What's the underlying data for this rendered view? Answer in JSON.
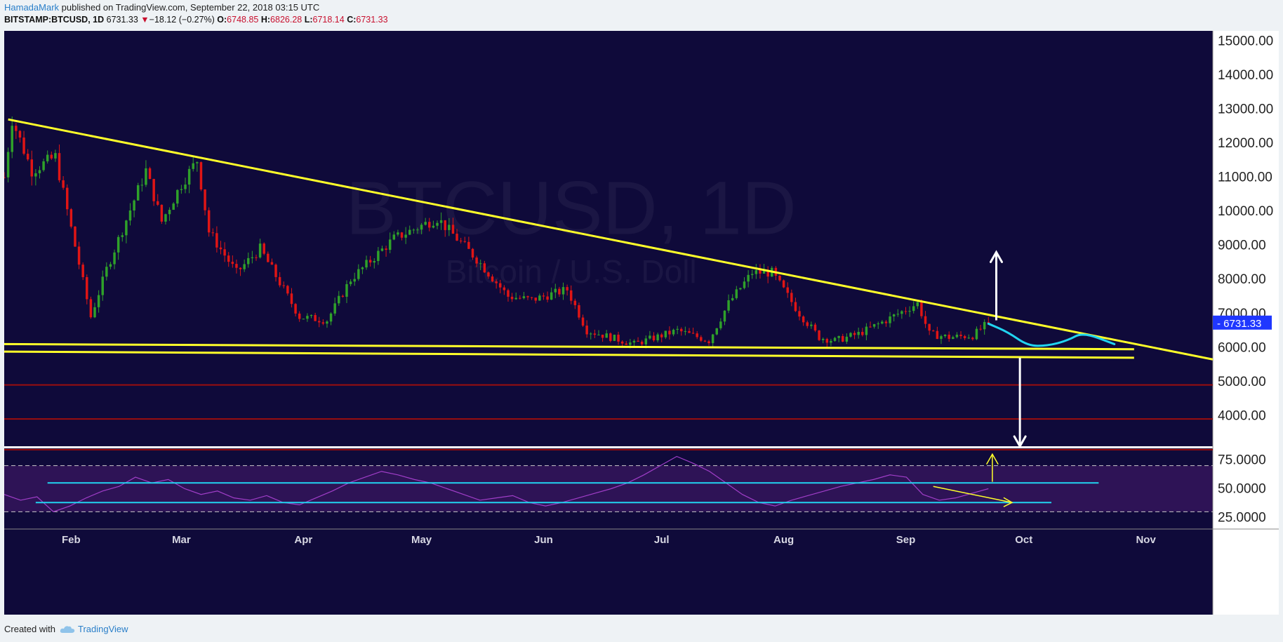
{
  "header": {
    "author": "HamadaMark",
    "published": "published on TradingView.com, September 22, 2018 03:15 UTC",
    "symbol": "BITSTAMP:BTCUSD, 1D",
    "last": "6731.33",
    "change_arrow": "▼",
    "change": "−18.12 (−0.27%)",
    "o_label": "O:",
    "o_value": "6748.85",
    "h_label": "H:",
    "h_value": "6826.28",
    "l_label": "L:",
    "l_value": "6718.14",
    "c_label": "C:",
    "c_value": "6731.33"
  },
  "watermark": {
    "symbol": "BTCUSD, 1D",
    "name": "Bitcoin / U.S. Doll"
  },
  "footer": {
    "created_with": "Created with",
    "brand": "TradingView"
  },
  "colors": {
    "background": "#0f0a3a",
    "oscillator_background": "#2e1356",
    "up_candle": "#2fa12a",
    "down_candle": "#e01515",
    "trendline": "#ffff2a",
    "support_red": "#9b0e0e",
    "projection": "#21d4f0",
    "arrow": "#ffffff",
    "rsi_line": "#a03ec8",
    "price_badge": "#1f37ff"
  },
  "chart_data": [
    {
      "type": "candlestick",
      "title": "BITSTAMP:BTCUSD, 1D",
      "y_ticks": [
        "15000.00",
        "14000.00",
        "13000.00",
        "12000.00",
        "11000.00",
        "10000.00",
        "9000.00",
        "8000.00",
        "7000.00",
        "6000.00",
        "5000.00",
        "4000.00"
      ],
      "y_tick_values": [
        15000,
        14000,
        13000,
        12000,
        11000,
        10000,
        9000,
        8000,
        7000,
        6000,
        5000,
        4000
      ],
      "x_ticks": [
        "Feb",
        "Mar",
        "Apr",
        "May",
        "Jun",
        "Jul",
        "Aug",
        "Sep",
        "Oct",
        "Nov"
      ],
      "x_range": [
        "2018-01-15",
        "2018-11-18"
      ],
      "ylim": [
        3100,
        15300
      ],
      "last_price_label": "6731.33",
      "monthly_path": [
        {
          "date": "2018-01-15",
          "close": 11000
        },
        {
          "date": "2018-01-17",
          "close": 12700
        },
        {
          "date": "2018-01-22",
          "close": 11200
        },
        {
          "date": "2018-01-28",
          "close": 11600
        },
        {
          "date": "2018-02-01",
          "close": 9500
        },
        {
          "date": "2018-02-06",
          "close": 6900
        },
        {
          "date": "2018-02-10",
          "close": 8300
        },
        {
          "date": "2018-02-20",
          "close": 11200
        },
        {
          "date": "2018-02-24",
          "close": 9700
        },
        {
          "date": "2018-03-01",
          "close": 10800
        },
        {
          "date": "2018-03-05",
          "close": 11500
        },
        {
          "date": "2018-03-08",
          "close": 9400
        },
        {
          "date": "2018-03-15",
          "close": 8200
        },
        {
          "date": "2018-03-21",
          "close": 8900
        },
        {
          "date": "2018-03-31",
          "close": 6900
        },
        {
          "date": "2018-04-07",
          "close": 6800
        },
        {
          "date": "2018-04-13",
          "close": 8000
        },
        {
          "date": "2018-04-24",
          "close": 9200
        },
        {
          "date": "2018-05-05",
          "close": 9800
        },
        {
          "date": "2018-05-15",
          "close": 8600
        },
        {
          "date": "2018-05-23",
          "close": 7500
        },
        {
          "date": "2018-05-29",
          "close": 7400
        },
        {
          "date": "2018-06-07",
          "close": 7700
        },
        {
          "date": "2018-06-12",
          "close": 6500
        },
        {
          "date": "2018-06-24",
          "close": 6100
        },
        {
          "date": "2018-07-05",
          "close": 6500
        },
        {
          "date": "2018-07-13",
          "close": 6200
        },
        {
          "date": "2018-07-18",
          "close": 7300
        },
        {
          "date": "2018-07-24",
          "close": 8200
        },
        {
          "date": "2018-07-29",
          "close": 8200
        },
        {
          "date": "2018-08-05",
          "close": 7000
        },
        {
          "date": "2018-08-10",
          "close": 6300
        },
        {
          "date": "2018-08-14",
          "close": 6200
        },
        {
          "date": "2018-08-20",
          "close": 6400
        },
        {
          "date": "2018-08-27",
          "close": 6800
        },
        {
          "date": "2018-09-04",
          "close": 7300
        },
        {
          "date": "2018-09-07",
          "close": 6400
        },
        {
          "date": "2018-09-12",
          "close": 6300
        },
        {
          "date": "2018-09-18",
          "close": 6350
        },
        {
          "date": "2018-09-22",
          "close": 6731.33
        }
      ],
      "overlays": {
        "descending_trendline": {
          "from": {
            "date": "2018-01-16",
            "price": 12700
          },
          "to": {
            "date": "2018-11-18",
            "price": 5650
          }
        },
        "support_line_upper": {
          "from": {
            "date": "2018-01-15",
            "price": 6100
          },
          "to": {
            "date": "2018-10-29",
            "price": 5950
          }
        },
        "support_line_lower": {
          "from": {
            "date": "2018-01-15",
            "price": 5880
          },
          "to": {
            "date": "2018-10-29",
            "price": 5700
          }
        },
        "red_horizontal_levels": [
          4900,
          3900,
          3000
        ],
        "projection_curve": [
          {
            "date": "2018-09-22",
            "price": 6700
          },
          {
            "date": "2018-09-27",
            "price": 6450
          },
          {
            "date": "2018-10-02",
            "price": 6050
          },
          {
            "date": "2018-10-07",
            "price": 6050
          },
          {
            "date": "2018-10-12",
            "price": 6200
          },
          {
            "date": "2018-10-16",
            "price": 6450
          },
          {
            "date": "2018-10-24",
            "price": 6100
          }
        ],
        "up_arrow": {
          "date": "2018-09-24",
          "from": 6800,
          "to": 8800
        },
        "down_arrow": {
          "date": "2018-09-30",
          "from": 5700,
          "to": 3100
        }
      }
    },
    {
      "type": "line",
      "title": "RSI",
      "y_ticks": [
        "75.0000",
        "50.0000",
        "25.0000"
      ],
      "y_tick_values": [
        75,
        50,
        25
      ],
      "ylim": [
        15,
        85
      ],
      "band_levels": [
        70,
        30
      ],
      "horizontal_lines": [
        {
          "from": "2018-01-26",
          "to": "2018-10-20",
          "value": 55
        },
        {
          "from": "2018-01-23",
          "to": "2018-10-08",
          "value": 38
        }
      ],
      "divergence_arrow": {
        "from": {
          "date": "2018-09-08",
          "value": 52
        },
        "to": {
          "date": "2018-09-28",
          "value": 38
        }
      },
      "up_arrow": {
        "date": "2018-09-23",
        "from": 56,
        "to": 80
      },
      "series": [
        {
          "values": [
            45,
            40,
            43,
            30,
            35,
            42,
            48,
            52,
            60,
            55,
            58,
            50,
            45,
            48,
            42,
            40,
            44,
            38,
            36,
            42,
            48,
            55,
            60,
            65,
            62,
            58,
            55,
            50,
            45,
            40,
            42,
            44,
            38,
            35,
            38,
            42,
            46,
            50,
            55,
            62,
            70,
            78,
            72,
            65,
            55,
            45,
            38,
            35,
            40,
            44,
            48,
            52,
            55,
            58,
            62,
            60,
            45,
            40,
            42,
            46,
            50
          ]
        }
      ]
    }
  ]
}
